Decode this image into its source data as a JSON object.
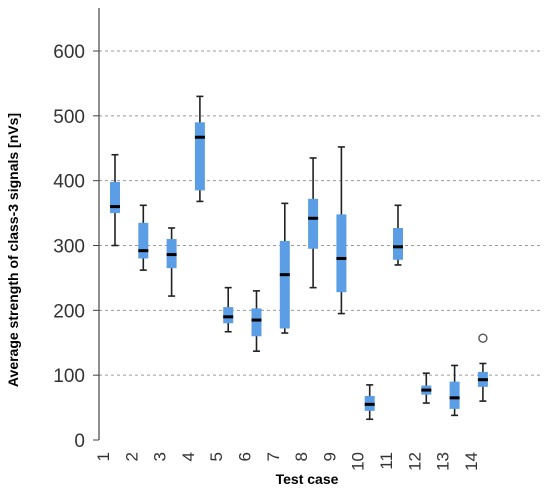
{
  "chart_data": {
    "type": "box",
    "title": "",
    "xlabel": "Test case",
    "ylabel": "Average strength of class-3 signals [nVs]",
    "ylim": [
      0,
      650
    ],
    "yticks": [
      0,
      100,
      200,
      300,
      400,
      500,
      600
    ],
    "grid": "horizontal dotted",
    "box_color": "#5b9ee6",
    "whisker_color": "#222222",
    "median_color": "#000000",
    "categories": [
      "1",
      "2",
      "3",
      "4",
      "5",
      "6",
      "7",
      "8",
      "9",
      "10",
      "11",
      "12",
      "13",
      "14"
    ],
    "boxes": [
      {
        "label": "1",
        "min": 300,
        "q1": 350,
        "median": 360,
        "q3": 398,
        "max": 440
      },
      {
        "label": "2",
        "min": 262,
        "q1": 280,
        "median": 292,
        "q3": 335,
        "max": 362
      },
      {
        "label": "3",
        "min": 222,
        "q1": 265,
        "median": 286,
        "q3": 310,
        "max": 327
      },
      {
        "label": "4",
        "min": 368,
        "q1": 385,
        "median": 467,
        "q3": 490,
        "max": 530
      },
      {
        "label": "5",
        "min": 167,
        "q1": 180,
        "median": 190,
        "q3": 205,
        "max": 235
      },
      {
        "label": "6",
        "min": 137,
        "q1": 160,
        "median": 185,
        "q3": 203,
        "max": 230
      },
      {
        "label": "7",
        "min": 165,
        "q1": 172,
        "median": 255,
        "q3": 307,
        "max": 365
      },
      {
        "label": "8",
        "min": 235,
        "q1": 295,
        "median": 342,
        "q3": 372,
        "max": 435
      },
      {
        "label": "9",
        "min": 195,
        "q1": 228,
        "median": 280,
        "q3": 348,
        "max": 452
      },
      {
        "label": "10",
        "min": 32,
        "q1": 45,
        "median": 55,
        "q3": 68,
        "max": 85
      },
      {
        "label": "11",
        "min": 270,
        "q1": 278,
        "median": 298,
        "q3": 327,
        "max": 362
      },
      {
        "label": "12",
        "min": 57,
        "q1": 70,
        "median": 77,
        "q3": 84,
        "max": 103
      },
      {
        "label": "13",
        "min": 38,
        "q1": 48,
        "median": 65,
        "q3": 90,
        "max": 115
      },
      {
        "label": "14",
        "min": 60,
        "q1": 82,
        "median": 93,
        "q3": 105,
        "max": 118
      }
    ],
    "outliers": [
      {
        "label": "14",
        "value": 157
      }
    ]
  }
}
